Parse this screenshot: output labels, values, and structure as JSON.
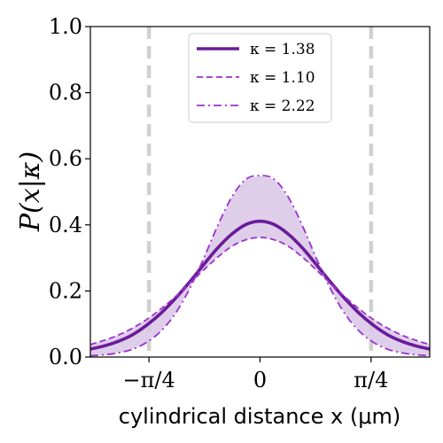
{
  "chart_data": {
    "type": "line",
    "xlabel": "cylindrical distance x (μm)",
    "ylabel": "P(x|κ)",
    "xlim": [
      -1.2,
      1.2
    ],
    "ylim": [
      0.0,
      1.0
    ],
    "grid": false,
    "legend_position": "top-center",
    "x_ticks": [
      {
        "value": -0.7854,
        "label": "−π/4"
      },
      {
        "value": 0.0,
        "label": "0"
      },
      {
        "value": 0.7854,
        "label": "π/4"
      }
    ],
    "y_ticks": [
      {
        "value": 0.0,
        "label": "0.0"
      },
      {
        "value": 0.2,
        "label": "0.2"
      },
      {
        "value": 0.4,
        "label": "0.4"
      },
      {
        "value": 0.6,
        "label": "0.6"
      },
      {
        "value": 0.8,
        "label": "0.8"
      },
      {
        "value": 1.0,
        "label": "1.0"
      }
    ],
    "vertical_lines": [
      -0.7854,
      0.7854
    ],
    "x": [
      -1.2,
      -1.1,
      -1.0,
      -0.9,
      -0.8,
      -0.7,
      -0.6,
      -0.5,
      -0.4,
      -0.3,
      -0.2,
      -0.1,
      0.0,
      0.1,
      0.2,
      0.3,
      0.4,
      0.5,
      0.6,
      0.7,
      0.8,
      0.9,
      1.0,
      1.1,
      1.2
    ],
    "series": [
      {
        "name": "κ = 1.38",
        "style": "solid",
        "color": "#6a1b9a",
        "values": [
          0.024,
          0.034,
          0.048,
          0.068,
          0.097,
          0.133,
          0.177,
          0.226,
          0.279,
          0.33,
          0.372,
          0.401,
          0.411,
          0.401,
          0.372,
          0.33,
          0.279,
          0.226,
          0.177,
          0.133,
          0.097,
          0.068,
          0.048,
          0.034,
          0.024
        ]
      },
      {
        "name": "κ = 1.10",
        "style": "dashed",
        "color": "#9b30d0",
        "values": [
          0.038,
          0.051,
          0.067,
          0.088,
          0.114,
          0.146,
          0.182,
          0.222,
          0.263,
          0.302,
          0.335,
          0.355,
          0.362,
          0.355,
          0.335,
          0.302,
          0.263,
          0.222,
          0.182,
          0.146,
          0.114,
          0.088,
          0.067,
          0.051,
          0.038
        ]
      },
      {
        "name": "κ = 2.22",
        "style": "dashdot",
        "color": "#9b30d0",
        "values": [
          0.004,
          0.007,
          0.013,
          0.024,
          0.045,
          0.079,
          0.131,
          0.205,
          0.297,
          0.397,
          0.484,
          0.538,
          0.549,
          0.538,
          0.484,
          0.397,
          0.297,
          0.205,
          0.131,
          0.079,
          0.045,
          0.024,
          0.013,
          0.007,
          0.004
        ]
      }
    ],
    "fill_between": {
      "series_a": 1,
      "series_b": 2,
      "color": "#d9c6e6"
    },
    "colors": {
      "vline": "#d0d0d0",
      "fill": "#d9c6e6"
    }
  }
}
